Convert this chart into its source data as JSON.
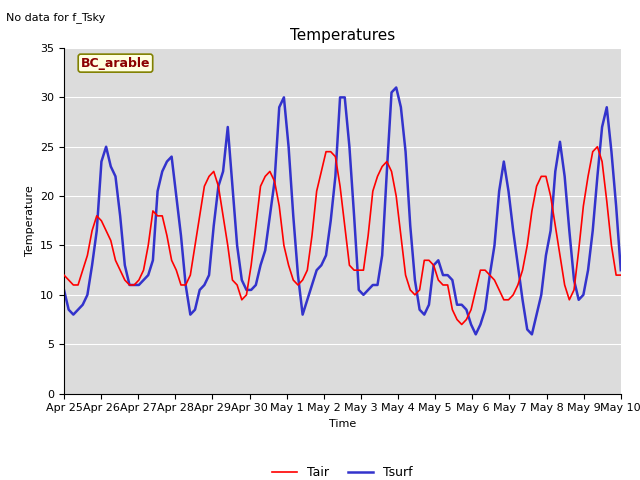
{
  "title": "Temperatures",
  "xlabel": "Time",
  "ylabel": "Temperature",
  "note": "No data for f_Tsky",
  "legend_label": "BC_arable",
  "ylim": [
    0,
    35
  ],
  "yticks": [
    0,
    5,
    10,
    15,
    20,
    25,
    30,
    35
  ],
  "xtick_labels": [
    "Apr 25",
    "Apr 26",
    "Apr 27",
    "Apr 28",
    "Apr 29",
    "Apr 30",
    "May 1",
    "May 2",
    "May 3",
    "May 4",
    "May 5",
    "May 6",
    "May 7",
    "May 8",
    "May 9",
    "May 10"
  ],
  "plot_bg_color": "#dcdcdc",
  "fig_bg_color": "#ffffff",
  "tair_color": "#ff0000",
  "tsurf_color": "#3333cc",
  "tair_label": "Tair",
  "tsurf_label": "Tsurf",
  "tair_linewidth": 1.2,
  "tsurf_linewidth": 1.8,
  "title_fontsize": 11,
  "label_fontsize": 8,
  "tick_fontsize": 8,
  "note_fontsize": 8,
  "bc_label_fontsize": 9,
  "legend_fontsize": 9,
  "tair_values": [
    12.0,
    11.5,
    11.0,
    11.0,
    12.5,
    14.0,
    16.5,
    18.0,
    17.5,
    16.5,
    15.5,
    13.5,
    12.5,
    11.5,
    11.0,
    11.0,
    11.5,
    12.5,
    15.0,
    18.5,
    18.0,
    18.0,
    16.0,
    13.5,
    12.5,
    11.0,
    11.0,
    12.0,
    15.0,
    18.0,
    21.0,
    22.0,
    22.5,
    21.0,
    18.0,
    15.0,
    11.5,
    11.0,
    9.5,
    10.0,
    13.0,
    17.0,
    21.0,
    22.0,
    22.5,
    21.5,
    19.0,
    15.0,
    13.0,
    11.5,
    11.0,
    11.5,
    12.5,
    16.0,
    20.5,
    22.5,
    24.5,
    24.5,
    24.0,
    21.0,
    17.0,
    13.0,
    12.5,
    12.5,
    12.5,
    16.0,
    20.5,
    22.0,
    23.0,
    23.5,
    22.5,
    20.0,
    16.0,
    12.0,
    10.5,
    10.0,
    10.5,
    13.5,
    13.5,
    13.0,
    11.5,
    11.0,
    11.0,
    8.5,
    7.5,
    7.0,
    7.5,
    8.5,
    10.5,
    12.5,
    12.5,
    12.0,
    11.5,
    10.5,
    9.5,
    9.5,
    10.0,
    11.0,
    12.5,
    15.0,
    18.5,
    21.0,
    22.0,
    22.0,
    20.0,
    17.0,
    14.0,
    11.0,
    9.5,
    10.5,
    14.5,
    19.0,
    22.0,
    24.5,
    25.0,
    23.5,
    19.5,
    15.0,
    12.0,
    12.0
  ],
  "tsurf_values": [
    10.5,
    8.5,
    8.0,
    8.5,
    9.0,
    10.0,
    13.0,
    16.5,
    23.5,
    25.0,
    23.0,
    22.0,
    18.0,
    13.0,
    11.0,
    11.0,
    11.0,
    11.5,
    12.0,
    13.5,
    20.5,
    22.5,
    23.5,
    24.0,
    20.0,
    16.0,
    11.0,
    8.0,
    8.5,
    10.5,
    11.0,
    12.0,
    17.0,
    21.0,
    22.5,
    27.0,
    21.0,
    15.0,
    11.5,
    10.5,
    10.5,
    11.0,
    13.0,
    14.5,
    18.0,
    21.5,
    29.0,
    30.0,
    25.0,
    18.0,
    12.0,
    8.0,
    9.5,
    11.0,
    12.5,
    13.0,
    14.0,
    17.5,
    22.0,
    30.0,
    30.0,
    25.0,
    18.0,
    10.5,
    10.0,
    10.5,
    11.0,
    11.0,
    14.0,
    22.5,
    30.5,
    31.0,
    29.0,
    24.5,
    17.0,
    11.5,
    8.5,
    8.0,
    9.0,
    13.0,
    13.5,
    12.0,
    12.0,
    11.5,
    9.0,
    9.0,
    8.5,
    7.0,
    6.0,
    7.0,
    8.5,
    12.0,
    15.0,
    20.5,
    23.5,
    20.5,
    16.5,
    13.0,
    9.5,
    6.5,
    6.0,
    8.0,
    10.0,
    14.0,
    16.5,
    22.5,
    25.5,
    22.0,
    16.5,
    11.5,
    9.5,
    10.0,
    12.5,
    16.5,
    22.0,
    27.0,
    29.0,
    24.5,
    19.0,
    12.5
  ]
}
